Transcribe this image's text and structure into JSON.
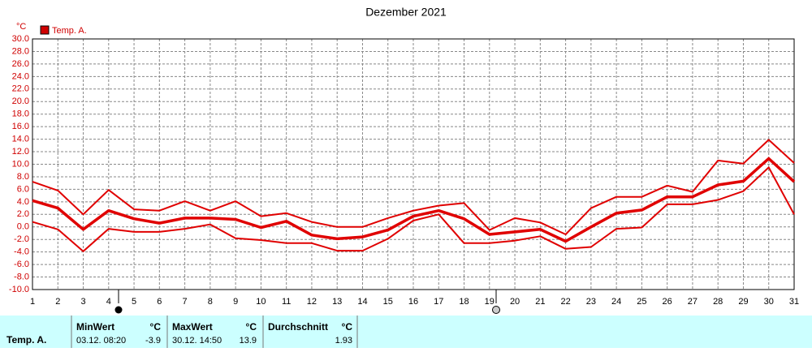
{
  "chart_data": {
    "type": "line",
    "title": "Dezember 2021",
    "y_unit": "°C",
    "legend": "Temp. A.",
    "legend_color": "#d00000",
    "x": [
      1,
      2,
      3,
      4,
      5,
      6,
      7,
      8,
      9,
      10,
      11,
      12,
      13,
      14,
      15,
      16,
      17,
      18,
      19,
      20,
      21,
      22,
      23,
      24,
      25,
      26,
      27,
      28,
      29,
      30,
      31
    ],
    "xlim": [
      1,
      31
    ],
    "xticks": [
      1,
      2,
      3,
      4,
      5,
      6,
      7,
      8,
      9,
      10,
      11,
      12,
      13,
      14,
      15,
      16,
      17,
      18,
      19,
      20,
      21,
      22,
      23,
      24,
      25,
      26,
      27,
      28,
      29,
      30,
      31
    ],
    "ylim": [
      -10,
      30
    ],
    "yticks": [
      {
        "value": -10,
        "label": "-10.0"
      },
      {
        "value": -8,
        "label": "-8.0"
      },
      {
        "value": -6,
        "label": "-6.0"
      },
      {
        "value": -4,
        "label": "-4.0"
      },
      {
        "value": -2,
        "label": "-2.0"
      },
      {
        "value": 0,
        "label": "0.0"
      },
      {
        "value": 2,
        "label": "2.0"
      },
      {
        "value": 4,
        "label": "4.0"
      },
      {
        "value": 6,
        "label": "6.0"
      },
      {
        "value": 8,
        "label": "8.0"
      },
      {
        "value": 10,
        "label": "10.0"
      },
      {
        "value": 12,
        "label": "12.0"
      },
      {
        "value": 14,
        "label": "14.0"
      },
      {
        "value": 16,
        "label": "16.0"
      },
      {
        "value": 18,
        "label": "18.0"
      },
      {
        "value": 20,
        "label": "20.0"
      },
      {
        "value": 22,
        "label": "22.0"
      },
      {
        "value": 24,
        "label": "24.0"
      },
      {
        "value": 26,
        "label": "26.0"
      },
      {
        "value": 28,
        "label": "28.0"
      },
      {
        "value": 30,
        "label": "30.0"
      }
    ],
    "grid": true,
    "series": [
      {
        "color": "#e00000",
        "values": [
          7.2,
          5.8,
          2.0,
          5.9,
          2.8,
          2.6,
          4.1,
          2.6,
          4.1,
          1.7,
          2.2,
          0.8,
          0.0,
          0.0,
          1.4,
          2.6,
          3.4,
          3.8,
          -0.5,
          1.4,
          0.7,
          -1.2,
          3.0,
          4.8,
          4.8,
          6.6,
          5.6,
          10.6,
          10.1,
          13.9,
          10.2
        ]
      },
      {
        "color": "#e00000",
        "values": [
          4.2,
          3.0,
          -0.4,
          2.6,
          1.3,
          0.6,
          1.4,
          1.4,
          1.2,
          -0.1,
          0.9,
          -1.3,
          -1.9,
          -1.6,
          -0.5,
          1.7,
          2.6,
          1.3,
          -1.2,
          -0.8,
          -0.4,
          -2.3,
          0.0,
          2.2,
          2.7,
          4.8,
          4.8,
          6.7,
          7.3,
          10.9,
          7.2
        ]
      },
      {
        "color": "#e00000",
        "values": [
          0.8,
          -0.4,
          -3.9,
          -0.3,
          -0.8,
          -0.8,
          -0.3,
          0.4,
          -1.8,
          -2.1,
          -2.6,
          -2.6,
          -3.8,
          -3.8,
          -1.9,
          1.0,
          2.0,
          -2.6,
          -2.6,
          -2.2,
          -1.5,
          -3.5,
          -3.2,
          -0.3,
          -0.1,
          3.6,
          3.6,
          4.3,
          5.7,
          9.5,
          2.0
        ]
      }
    ]
  },
  "summary": {
    "row_label": "Temp. A.",
    "min": {
      "title": "MinWert",
      "unit": "°C",
      "time": "03.12.  08:20",
      "value": -3.9
    },
    "max": {
      "title": "MaxWert",
      "unit": "°C",
      "time": "30.12.  14:50",
      "value": 13.9
    },
    "avg": {
      "title": "Durchschnitt",
      "unit": "°C",
      "value": 1.93
    }
  }
}
